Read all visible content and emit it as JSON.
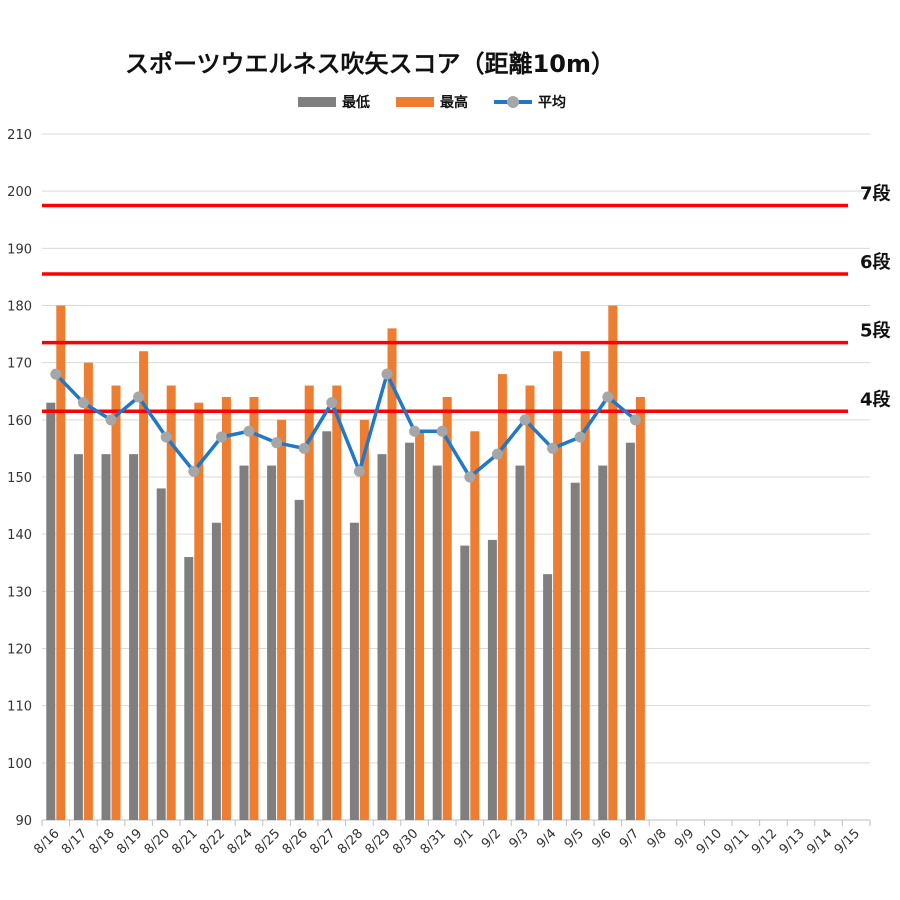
{
  "chart_data": {
    "type": "bar+line",
    "title": "スポーツウエルネス吹矢スコア（距離10m）",
    "categories": [
      "8/16",
      "8/17",
      "8/18",
      "8/19",
      "8/20",
      "8/21",
      "8/22",
      "8/24",
      "8/25",
      "8/26",
      "8/27",
      "8/28",
      "8/29",
      "8/30",
      "8/31",
      "9/1",
      "9/2",
      "9/3",
      "9/4",
      "9/5",
      "9/6",
      "9/7",
      "9/8",
      "9/9",
      "9/10",
      "9/11",
      "9/12",
      "9/13",
      "9/14",
      "9/15"
    ],
    "series": [
      {
        "name": "最低",
        "type": "bar",
        "color": "#7f7f7f",
        "values": [
          163,
          154,
          154,
          154,
          148,
          136,
          142,
          152,
          152,
          146,
          158,
          142,
          154,
          156,
          152,
          138,
          139,
          152,
          133,
          149,
          152,
          156,
          null,
          null,
          null,
          null,
          null,
          null,
          null,
          null
        ]
      },
      {
        "name": "最高",
        "type": "bar",
        "color": "#ed7d31",
        "values": [
          180,
          170,
          166,
          172,
          166,
          163,
          164,
          164,
          160,
          166,
          166,
          160,
          176,
          158,
          164,
          158,
          168,
          166,
          172,
          172,
          180,
          164,
          null,
          null,
          null,
          null,
          null,
          null,
          null,
          null
        ]
      },
      {
        "name": "平均",
        "type": "line",
        "color": "#1f78c8",
        "marker_color": "#a6a6a6",
        "values": [
          168,
          163,
          160,
          164,
          157,
          151,
          157,
          158,
          156,
          155,
          163,
          151,
          168,
          158,
          158,
          150,
          154,
          160,
          155,
          157,
          164,
          160,
          null,
          null,
          null,
          null,
          null,
          null,
          null,
          null
        ]
      }
    ],
    "ylim": [
      90,
      210
    ],
    "yticks": [
      90,
      100,
      110,
      120,
      130,
      140,
      150,
      160,
      170,
      180,
      190,
      200,
      210
    ],
    "grid": true,
    "legend": "top",
    "reference_lines": [
      {
        "label": "4段",
        "value": 161.5,
        "color": "#ff0000"
      },
      {
        "label": "5段",
        "value": 173.5,
        "color": "#ff0000"
      },
      {
        "label": "6段",
        "value": 185.5,
        "color": "#ff0000"
      },
      {
        "label": "7段",
        "value": 197.5,
        "color": "#ff0000"
      }
    ]
  }
}
